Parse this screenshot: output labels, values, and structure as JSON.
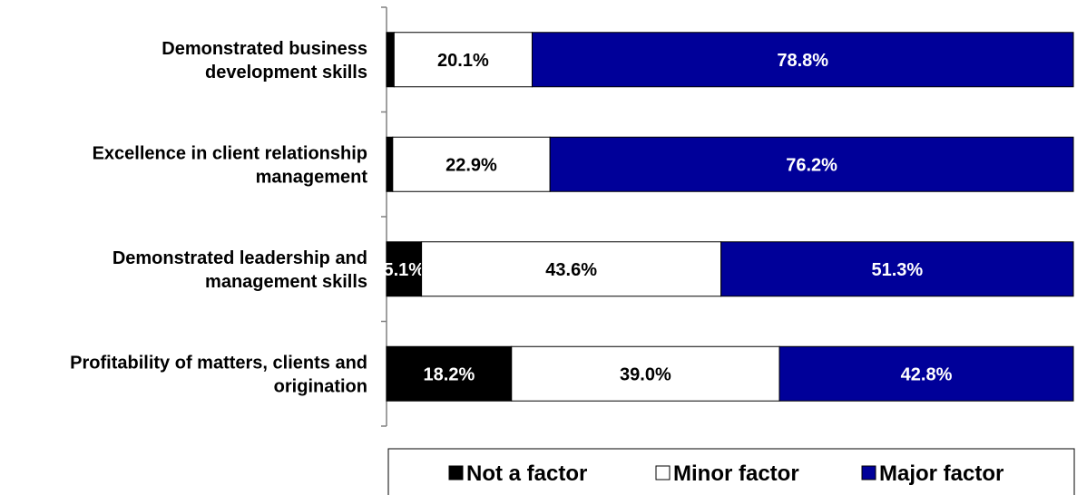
{
  "chart_data": {
    "type": "bar",
    "orientation": "horizontal",
    "stacked": true,
    "percent": true,
    "categories": [
      [
        "Demonstrated business",
        "development skills"
      ],
      [
        "Excellence in client relationship",
        "management"
      ],
      [
        "Demonstrated leadership and",
        "management skills"
      ],
      [
        "Profitability of matters, clients and",
        "origination"
      ]
    ],
    "series": [
      {
        "name": "Not a factor",
        "color": "#000000",
        "label_color": "#ffffff",
        "values": [
          1.1,
          0.9,
          5.1,
          18.2
        ],
        "labels": [
          "",
          "",
          "5.1%",
          "18.2%"
        ]
      },
      {
        "name": "Minor factor",
        "color": "#ffffff",
        "label_color": "#000000",
        "values": [
          20.1,
          22.9,
          43.6,
          39.0
        ],
        "labels": [
          "20.1%",
          "22.9%",
          "43.6%",
          "39.0%"
        ]
      },
      {
        "name": "Major factor",
        "color": "#000099",
        "label_color": "#ffffff",
        "values": [
          78.8,
          76.2,
          51.3,
          42.8
        ],
        "labels": [
          "78.8%",
          "76.2%",
          "51.3%",
          "42.8%"
        ]
      }
    ],
    "xlim": [
      0,
      100
    ],
    "grid": false,
    "legend_position": "bottom"
  }
}
